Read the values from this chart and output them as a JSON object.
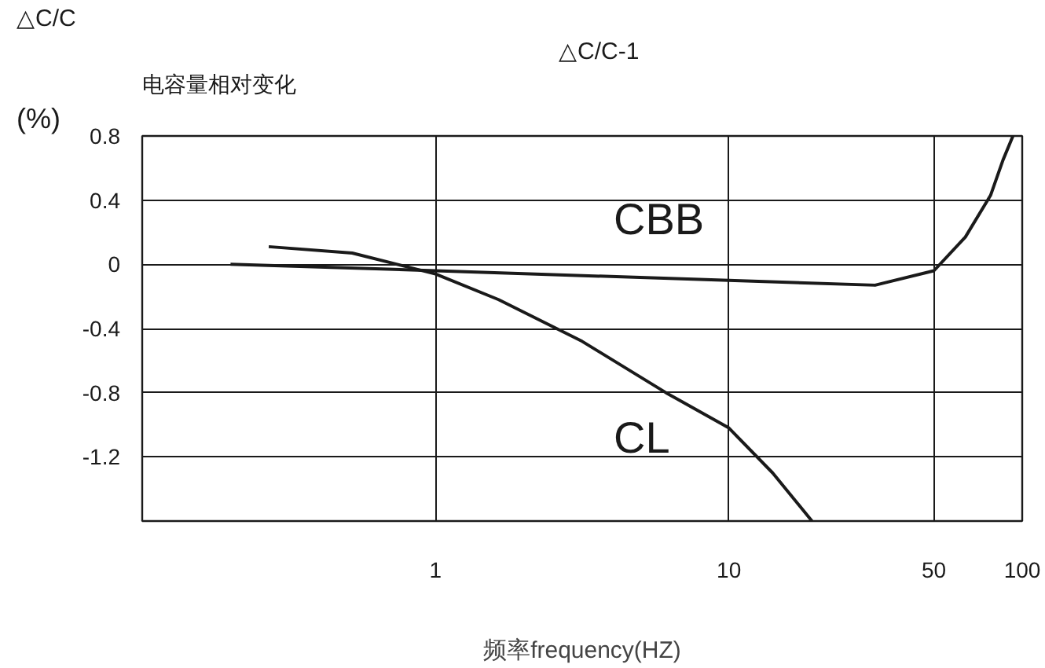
{
  "chart_data": {
    "type": "line",
    "title": "电容量相对变化",
    "xlabel": "频率frequency(HZ)",
    "ylabel": "(%)",
    "annotations": [
      "△C/C",
      "△C/C-1"
    ],
    "log": "x",
    "xlim": [
      0.1,
      100
    ],
    "xticks": [
      1,
      10,
      50,
      100
    ],
    "ylim": [
      -1.6,
      0.8
    ],
    "yticks": [
      0.8,
      0.4,
      0,
      -0.4,
      -0.8,
      -1.2
    ],
    "grid": true,
    "series": [
      {
        "name": "CBB",
        "color": "#1a1a1a",
        "x": [
          0.2,
          1,
          10,
          31.5,
          50,
          64,
          78,
          86,
          93
        ],
        "values": [
          0,
          -0.04,
          -0.1,
          -0.13,
          -0.04,
          0.17,
          0.43,
          0.65,
          0.8
        ]
      },
      {
        "name": "CL",
        "color": "#1a1a1a",
        "x": [
          0.27,
          0.52,
          1,
          1.64,
          3.16,
          6.1,
          10,
          14.1,
          19.2
        ],
        "values": [
          0.11,
          0.07,
          -0.06,
          -0.22,
          -0.48,
          -0.8,
          -1.02,
          -1.3,
          -1.6
        ]
      }
    ]
  }
}
